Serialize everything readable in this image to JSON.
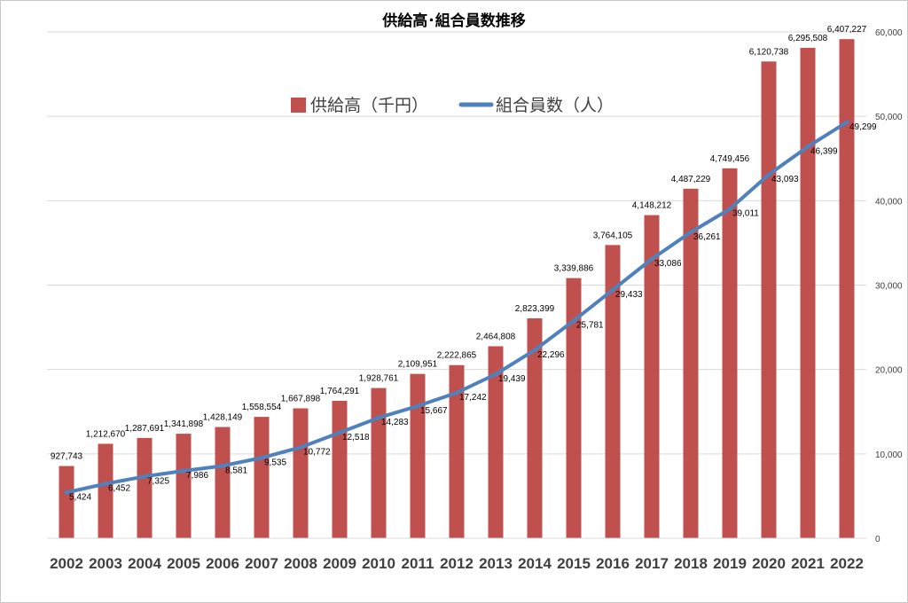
{
  "chart_data": {
    "type": "bar",
    "title": "供給高･組合員数推移",
    "categories": [
      "2002",
      "2003",
      "2004",
      "2005",
      "2006",
      "2007",
      "2008",
      "2009",
      "2010",
      "2011",
      "2012",
      "2013",
      "2014",
      "2015",
      "2016",
      "2017",
      "2018",
      "2019",
      "2020",
      "2021",
      "2022"
    ],
    "series": [
      {
        "name": "供給高（千円）",
        "type": "bar",
        "axis": "left",
        "color": "#c0504d",
        "values": [
          927743,
          1212670,
          1287691,
          1341898,
          1428149,
          1558554,
          1667898,
          1764291,
          1928761,
          2109951,
          2222865,
          2464808,
          2823399,
          3339886,
          3764105,
          4148212,
          4487229,
          4749456,
          6120738,
          6295508,
          6407227
        ],
        "labels": [
          "927,743",
          "1,212,670",
          "1,287,691",
          "1,341,898",
          "1,428,149",
          "1,558,554",
          "1,667,898",
          "1,764,291",
          "1,928,761",
          "2,109,951",
          "2,222,865",
          "2,464,808",
          "2,823,399",
          "3,339,886",
          "3,764,105",
          "4,148,212",
          "4,487,229",
          "4,749,456",
          "6,120,738",
          "6,295,508",
          "6,407,227"
        ]
      },
      {
        "name": "組合員数（人）",
        "type": "line",
        "axis": "right",
        "color": "#4f81bd",
        "values": [
          5424,
          6452,
          7325,
          7986,
          8581,
          9535,
          10772,
          12518,
          14283,
          15667,
          17242,
          19439,
          22296,
          25781,
          29433,
          33086,
          36261,
          39011,
          43093,
          46399,
          49299
        ],
        "labels": [
          "5,424",
          "6,452",
          "7,325",
          "7,986",
          "8,581",
          "9,535",
          "10,772",
          "12,518",
          "14,283",
          "15,667",
          "17,242",
          "19,439",
          "22,296",
          "25,781",
          "29,433",
          "33,086",
          "36,261",
          "39,011",
          "43,093",
          "46,399",
          "49,299"
        ]
      }
    ],
    "y_left_range": [
      0,
      6500000
    ],
    "y_right_range": [
      0,
      60000
    ],
    "y_right_ticks": [
      0,
      10000,
      20000,
      30000,
      40000,
      50000,
      60000
    ],
    "y_right_tick_labels": [
      "0",
      "10,000",
      "20,000",
      "30,000",
      "40,000",
      "50,000",
      "60,000"
    ],
    "grid": true,
    "legend": "top-left inside plot"
  }
}
